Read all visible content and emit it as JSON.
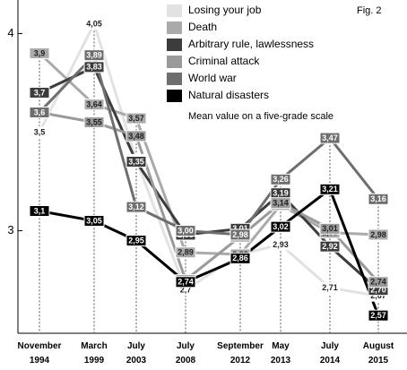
{
  "chart_data": {
    "type": "line",
    "figure_label": "Fig. 2",
    "note": "Mean value on a five-grade scale",
    "categories": [
      "November 1994",
      "March 1999",
      "July 2003",
      "July 2008",
      "September 2012",
      "May 2013",
      "July 2014",
      "August 2015"
    ],
    "ylim": [
      2.48,
      4.17
    ],
    "yticks": [
      3,
      4
    ],
    "series": [
      {
        "name": "Losing your job",
        "color": "#e2e2e2",
        "values": [
          3.5,
          4.05,
          3.36,
          2.7,
          2.88,
          2.93,
          2.71,
          2.67
        ],
        "value_labels": [
          "3,5",
          "4,05",
          "3,36",
          "2,7",
          "2,88",
          "2,93",
          "2,71",
          "2,67"
        ]
      },
      {
        "name": "Death",
        "color": "#aaaaaa",
        "values": [
          3.9,
          3.64,
          3.57,
          2.89,
          2.88,
          3.13,
          2.99,
          2.98
        ],
        "value_labels": [
          "3,9",
          "3,64",
          "3,57",
          "2,89",
          "2,88",
          "3,13",
          "2,99",
          "2,98"
        ]
      },
      {
        "name": "Arbitrary rule, lawlessness",
        "color": "#3c3c3c",
        "values": [
          3.7,
          3.83,
          3.35,
          2.98,
          3.01,
          3.19,
          2.92,
          2.7
        ],
        "value_labels": [
          "3,7",
          "3,83",
          "3,35",
          "2,98",
          "3,01",
          "3,19",
          "2,92",
          "2,70"
        ]
      },
      {
        "name": "Criminal attack",
        "color": "#9a9a9a",
        "values": [
          3.6,
          3.55,
          3.48,
          2.75,
          2.97,
          3.14,
          3.01,
          2.74
        ],
        "value_labels": [
          "3,6",
          "3,55",
          "3,48",
          "2,75",
          "2,97",
          "3,14",
          "3,01",
          "2,74"
        ]
      },
      {
        "name": "World war",
        "color": "#6e6e6e",
        "values": [
          3.6,
          3.89,
          3.12,
          3.0,
          2.98,
          3.26,
          3.47,
          3.16
        ],
        "value_labels": [
          "3,6",
          "3,89",
          "3,12",
          "3,00",
          "2,98",
          "3,26",
          "3,47",
          "3,16"
        ]
      },
      {
        "name": "Natural disasters",
        "color": "#000000",
        "values": [
          3.1,
          3.05,
          2.95,
          2.74,
          2.86,
          3.02,
          3.21,
          2.57
        ],
        "value_labels": [
          "3,1",
          "3,05",
          "2,95",
          "2,74",
          "2,86",
          "3,02",
          "3,21",
          "2,57"
        ]
      }
    ]
  }
}
